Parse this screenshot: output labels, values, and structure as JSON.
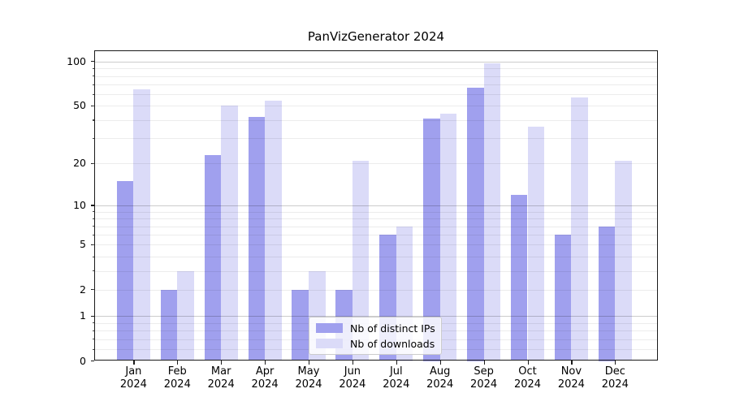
{
  "figure": {
    "title": "PanVizGenerator 2024",
    "background": "#ffffff"
  },
  "legend": {
    "position": "lower-center-inside",
    "items": [
      {
        "label": "Nb of distinct IPs",
        "color": "#a0a0ee"
      },
      {
        "label": "Nb of downloads",
        "color": "#dbdbf8"
      }
    ]
  },
  "chart_data": {
    "type": "bar",
    "title": "PanVizGenerator 2024",
    "categories": [
      "Jan",
      "Feb",
      "Mar",
      "Apr",
      "May",
      "Jun",
      "Jul",
      "Aug",
      "Sep",
      "Oct",
      "Nov",
      "Dec"
    ],
    "category_year_line": "2024",
    "series": [
      {
        "name": "Nb of distinct IPs",
        "color": "#a0a0ee",
        "values": [
          15,
          2,
          23,
          42,
          2,
          2,
          6,
          41,
          67,
          12,
          6,
          7
        ]
      },
      {
        "name": "Nb of downloads",
        "color": "#dbdbf8",
        "values": [
          65,
          3,
          50,
          54,
          3,
          21,
          7,
          44,
          97,
          36,
          57,
          21
        ]
      }
    ],
    "xlabel": "",
    "ylabel": "",
    "yscale": "symlog (position ~ ln(1+v))",
    "ylim": [
      0,
      118
    ],
    "yticks_labeled": [
      0,
      1,
      2,
      5,
      10,
      20,
      50,
      100
    ],
    "ytick_label_texts": [
      "0",
      "1",
      "2",
      "5",
      "10",
      "20",
      "50",
      "100"
    ],
    "ygrid_major": [
      1,
      10,
      100
    ],
    "ygrid_minor": [
      0.2,
      0.4,
      0.6,
      0.8,
      2,
      3,
      4,
      5,
      6,
      7,
      8,
      9,
      20,
      30,
      40,
      50,
      60,
      70,
      80,
      90
    ],
    "grid": "horizontal only",
    "legend_position": "inside bottom, center-right"
  }
}
